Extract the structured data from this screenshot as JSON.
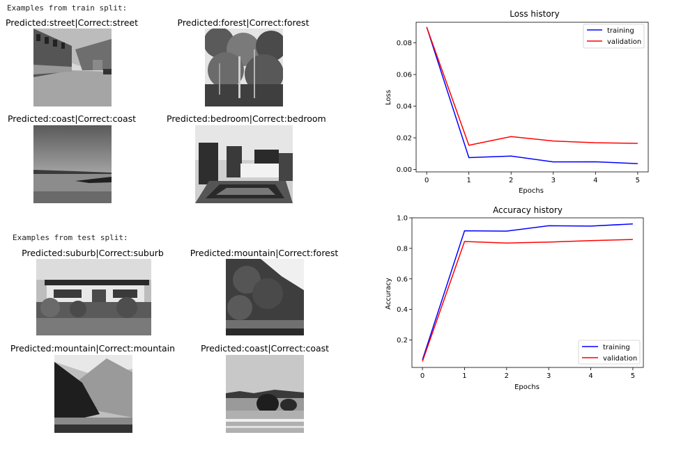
{
  "train_header": "Examples from train split:",
  "test_header": "Examples from test split:",
  "train_examples": [
    {
      "caption": "Predicted:street|Correct:street",
      "scene": "street"
    },
    {
      "caption": "Predicted:forest|Correct:forest",
      "scene": "forest"
    },
    {
      "caption": "Predicted:coast|Correct:coast",
      "scene": "coast"
    },
    {
      "caption": "Predicted:bedroom|Correct:bedroom",
      "scene": "bedroom"
    }
  ],
  "test_examples": [
    {
      "caption": "Predicted:suburb|Correct:suburb",
      "scene": "suburb"
    },
    {
      "caption": "Predicted:mountain|Correct:forest",
      "scene": "forest-hill"
    },
    {
      "caption": "Predicted:mountain|Correct:mountain",
      "scene": "mountain"
    },
    {
      "caption": "Predicted:coast|Correct:coast",
      "scene": "coast-rocks"
    }
  ],
  "chart_data": [
    {
      "type": "line",
      "title": "Loss history",
      "xlabel": "Epochs",
      "ylabel": "Loss",
      "x": [
        0,
        1,
        2,
        3,
        4,
        5
      ],
      "xticks": [
        "0",
        "1",
        "2",
        "3",
        "4",
        "5"
      ],
      "yticks": [
        "0.00",
        "0.02",
        "0.04",
        "0.06",
        "0.08"
      ],
      "ytick_values": [
        0.0,
        0.02,
        0.04,
        0.06,
        0.08
      ],
      "xlim": [
        -0.25,
        5.25
      ],
      "ylim": [
        -0.0015,
        0.093
      ],
      "legend_position": "top-right",
      "series": [
        {
          "name": "training",
          "color": "#0000ff",
          "values": [
            0.09,
            0.0075,
            0.0085,
            0.0048,
            0.0049,
            0.0037
          ]
        },
        {
          "name": "validation",
          "color": "#ff0000",
          "values": [
            0.09,
            0.0153,
            0.0208,
            0.018,
            0.0169,
            0.0165
          ]
        }
      ]
    },
    {
      "type": "line",
      "title": "Accuracy history",
      "xlabel": "Epochs",
      "ylabel": "Accuracy",
      "x": [
        0,
        1,
        2,
        3,
        4,
        5
      ],
      "xticks": [
        "0",
        "1",
        "2",
        "3",
        "4",
        "5"
      ],
      "yticks": [
        "0.2",
        "0.4",
        "0.6",
        "0.8",
        "1.0"
      ],
      "ytick_values": [
        0.2,
        0.4,
        0.6,
        0.8,
        1.0
      ],
      "xlim": [
        -0.25,
        5.25
      ],
      "ylim": [
        0.02,
        1.0
      ],
      "legend_position": "bottom-right",
      "series": [
        {
          "name": "training",
          "color": "#0000ff",
          "values": [
            0.07,
            0.915,
            0.913,
            0.948,
            0.946,
            0.96
          ]
        },
        {
          "name": "validation",
          "color": "#ff0000",
          "values": [
            0.06,
            0.845,
            0.835,
            0.841,
            0.851,
            0.858
          ]
        }
      ]
    }
  ]
}
